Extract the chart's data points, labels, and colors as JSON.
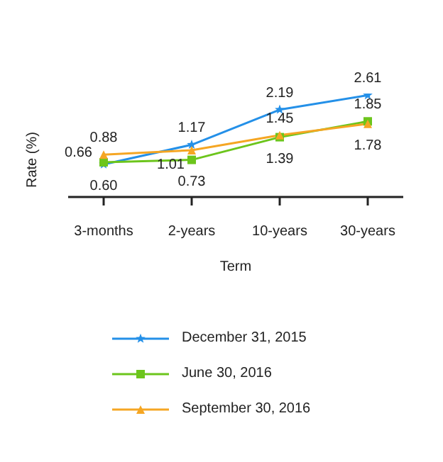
{
  "chart_data": {
    "type": "line",
    "xlabel": "Term",
    "ylabel": "Rate (%)",
    "categories": [
      "3-months",
      "2-years",
      "10-years",
      "30-years"
    ],
    "series": [
      {
        "name": "December 31, 2015",
        "color": "#2490e8",
        "marker": "star",
        "values": [
          0.6,
          1.17,
          2.19,
          2.61
        ],
        "value_labels": [
          "0.60",
          "1.17",
          "2.19",
          "2.61"
        ]
      },
      {
        "name": "June 30, 2016",
        "color": "#6cc51c",
        "marker": "square",
        "values": [
          0.66,
          0.73,
          1.39,
          1.85
        ],
        "value_labels": [
          "0.66",
          "0.73",
          "1.39",
          "1.85"
        ]
      },
      {
        "name": "September 30, 2016",
        "color": "#f5a623",
        "marker": "triangle",
        "values": [
          0.88,
          1.01,
          1.45,
          1.78
        ],
        "value_labels": [
          "0.88",
          "1.01",
          "1.45",
          "1.78"
        ]
      }
    ],
    "legend": "bottom",
    "tick_labels": "x",
    "line_style": "solid"
  }
}
